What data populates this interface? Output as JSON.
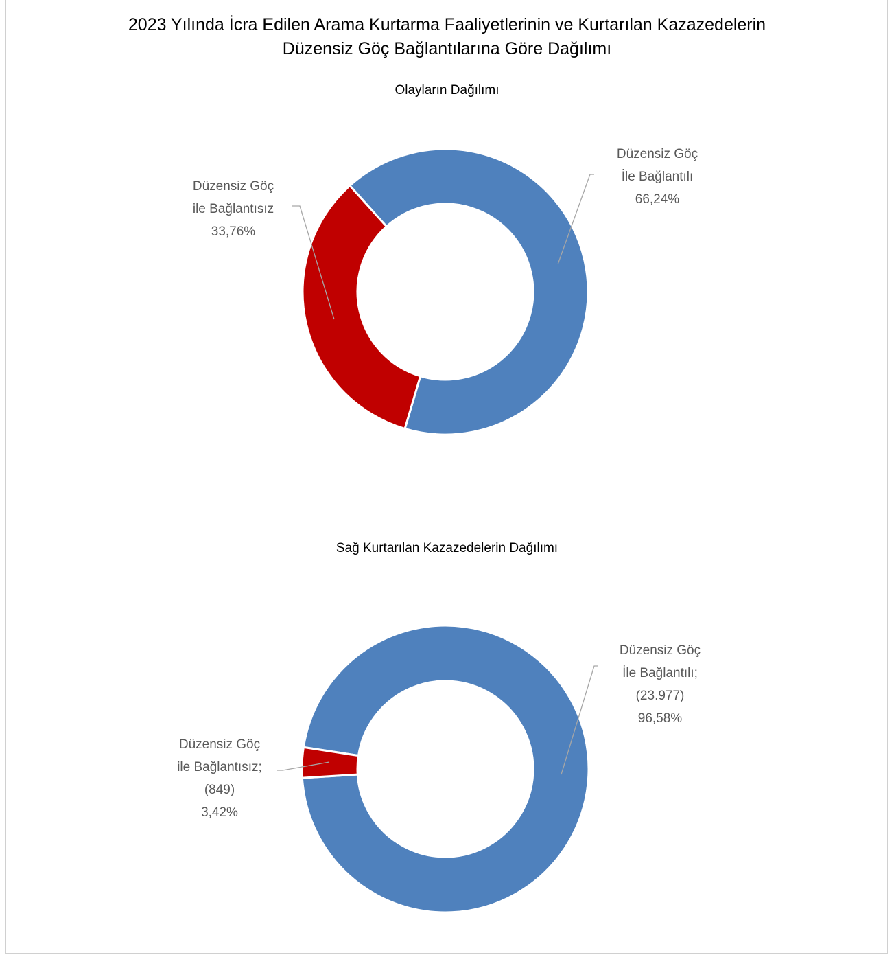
{
  "title": [
    "2023 Yılında İcra Edilen Arama Kurtarma Faaliyetlerinin ve Kurtarılan Kazazedelerin",
    "Düzensiz Göç Bağlantılarına Göre Dağılımı"
  ],
  "chart_data": [
    {
      "type": "donut",
      "title": "Olayların Dağılımı",
      "categories": [
        "Düzensiz Göç İle Bağlantılı",
        "Düzensiz Göç ile Bağlantısız"
      ],
      "values": [
        66.24,
        33.76
      ],
      "value_labels": [
        "66,24%",
        "33,76%"
      ],
      "colors": [
        "#4f81bd",
        "#c00000"
      ]
    },
    {
      "type": "donut",
      "title": "Sağ Kurtarılan Kazazedelerin Dağılımı",
      "categories": [
        "Düzensiz Göç İle Bağlantılı;",
        "Düzensiz Göç ile Bağlantısız;"
      ],
      "values": [
        23977,
        849
      ],
      "value_labels": [
        "(23.977)",
        "(849)"
      ],
      "percentages": [
        96.58,
        3.42
      ],
      "percent_labels": [
        "96,58%",
        "3,42%"
      ],
      "colors": [
        "#4f81bd",
        "#c00000"
      ]
    }
  ]
}
